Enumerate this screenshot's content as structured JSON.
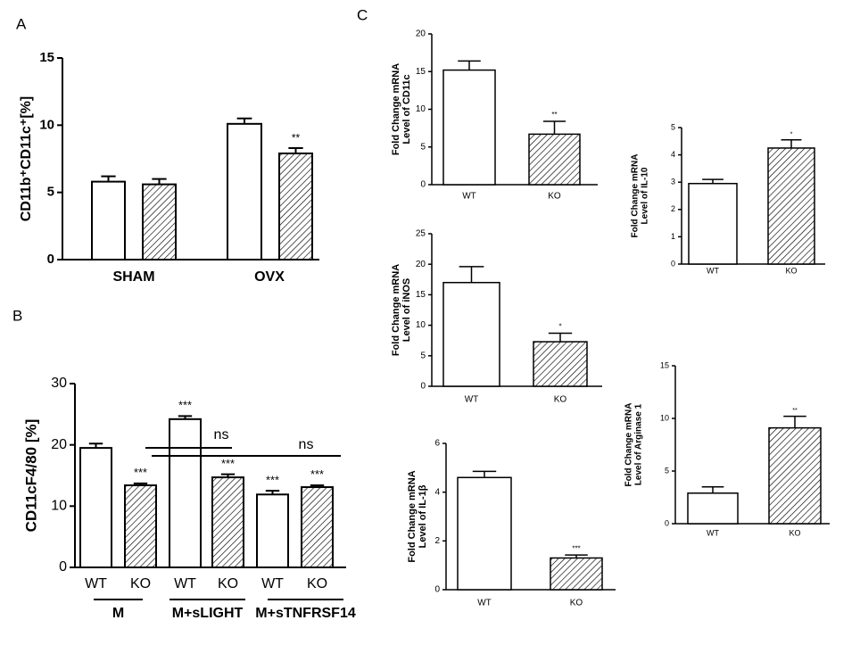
{
  "chart_data": [
    {
      "type": "bar",
      "panel_label": "A",
      "ylabel": "CD11b⁺CD11c⁺[%]",
      "categories": [
        "SHAM",
        "OVX"
      ],
      "series": [
        {
          "color": "#ffffff",
          "hatch": false,
          "values": [
            5.8,
            10.1
          ],
          "errors": [
            0.4,
            0.4
          ],
          "bar_labels": [
            null,
            null
          ]
        },
        {
          "color": "#ffffff",
          "hatch": true,
          "values": [
            5.6,
            7.9
          ],
          "errors": [
            0.4,
            0.4
          ],
          "bar_labels": [
            null,
            "**"
          ]
        }
      ],
      "ylim": [
        0,
        15
      ],
      "yticks": [
        0,
        5,
        10,
        15
      ]
    },
    {
      "type": "bar",
      "panel_label": "B",
      "ylabel": "CD11cF4/80 [%]",
      "categories": [
        "WT",
        "KO",
        "WT",
        "KO",
        "WT",
        "KO"
      ],
      "groups": [
        "M",
        "M+sLIGHT",
        "M+sTNFRSF14"
      ],
      "values": [
        19.5,
        13.4,
        24.2,
        14.7,
        11.9,
        13.1
      ],
      "errors": [
        0.7,
        0.3,
        0.5,
        0.5,
        0.6,
        0.3
      ],
      "hatch": [
        false,
        true,
        false,
        true,
        false,
        true
      ],
      "color": "#ffffff",
      "bar_labels": [
        null,
        "***",
        "***",
        "***",
        "***",
        "***"
      ],
      "annotations": [
        "ns",
        "ns"
      ],
      "ylim": [
        0,
        30
      ],
      "yticks": [
        0,
        10,
        20,
        30
      ]
    },
    {
      "type": "bar",
      "panel_label": "C",
      "ylabel": [
        "Fold Change mRNA",
        "Level of CD11c"
      ],
      "categories": [
        "WT",
        "KO"
      ],
      "values": [
        15.2,
        6.7
      ],
      "errors": [
        1.2,
        1.7
      ],
      "hatch": [
        false,
        true
      ],
      "color": "#ffffff",
      "bar_labels": [
        null,
        "**"
      ],
      "ylim": [
        0,
        20
      ],
      "yticks": [
        0,
        5,
        10,
        15,
        20
      ]
    },
    {
      "type": "bar",
      "ylabel": [
        "Fold Change mRNA",
        "Level of iNOS"
      ],
      "categories": [
        "WT",
        "KO"
      ],
      "values": [
        17,
        7.3
      ],
      "errors": [
        2.6,
        1.4
      ],
      "hatch": [
        false,
        true
      ],
      "color": "#ffffff",
      "bar_labels": [
        null,
        "*"
      ],
      "ylim": [
        0,
        25
      ],
      "yticks": [
        0,
        5,
        10,
        15,
        20,
        25
      ]
    },
    {
      "type": "bar",
      "ylabel": [
        "Fold Change mRNA",
        "Level of IL-1β"
      ],
      "categories": [
        "WT",
        "KO"
      ],
      "values": [
        4.6,
        1.3
      ],
      "errors": [
        0.25,
        0.12
      ],
      "hatch": [
        false,
        true
      ],
      "color": "#ffffff",
      "bar_labels": [
        null,
        "***"
      ],
      "ylim": [
        0,
        6
      ],
      "yticks": [
        0,
        2,
        4,
        6
      ]
    },
    {
      "type": "bar",
      "ylabel": [
        "Fold Change mRNA",
        "Level of IL-10"
      ],
      "categories": [
        "WT",
        "KO"
      ],
      "values": [
        2.95,
        4.25
      ],
      "errors": [
        0.15,
        0.3
      ],
      "hatch": [
        false,
        true
      ],
      "color": "#ffffff",
      "bar_labels": [
        null,
        "*"
      ],
      "ylim": [
        0,
        5
      ],
      "yticks": [
        0,
        1,
        2,
        3,
        4,
        5
      ]
    },
    {
      "type": "bar",
      "ylabel": [
        "Fold Change mRNA",
        "Level of Arginase 1"
      ],
      "categories": [
        "WT",
        "KO"
      ],
      "values": [
        2.9,
        9.1
      ],
      "errors": [
        0.6,
        1.1
      ],
      "hatch": [
        false,
        true
      ],
      "color": "#ffffff",
      "bar_labels": [
        null,
        "**"
      ],
      "ylim": [
        0,
        15
      ],
      "yticks": [
        0,
        5,
        10,
        15
      ]
    }
  ]
}
